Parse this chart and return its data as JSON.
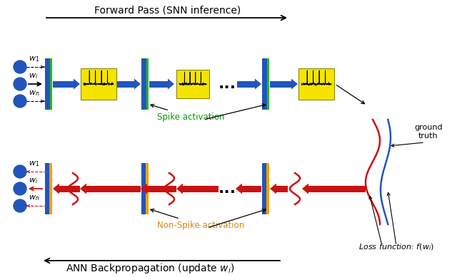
{
  "title_top": "Forward Pass (SNN inference)",
  "title_bottom": "ANN Backpropagation (update $w_i$)",
  "spike_label": "Spike activation",
  "nonspike_label": "Non-Spike activation",
  "ground_truth_label": "ground\ntruth",
  "loss_label": "Loss function: $f(w_i)$",
  "bg_color": "#ffffff",
  "blue_color": "#2255bb",
  "yellow_color": "#f5e400",
  "green_color": "#22bb22",
  "orange_color": "#f5a000",
  "red_color": "#cc1111",
  "neuron_color": "#2255bb"
}
